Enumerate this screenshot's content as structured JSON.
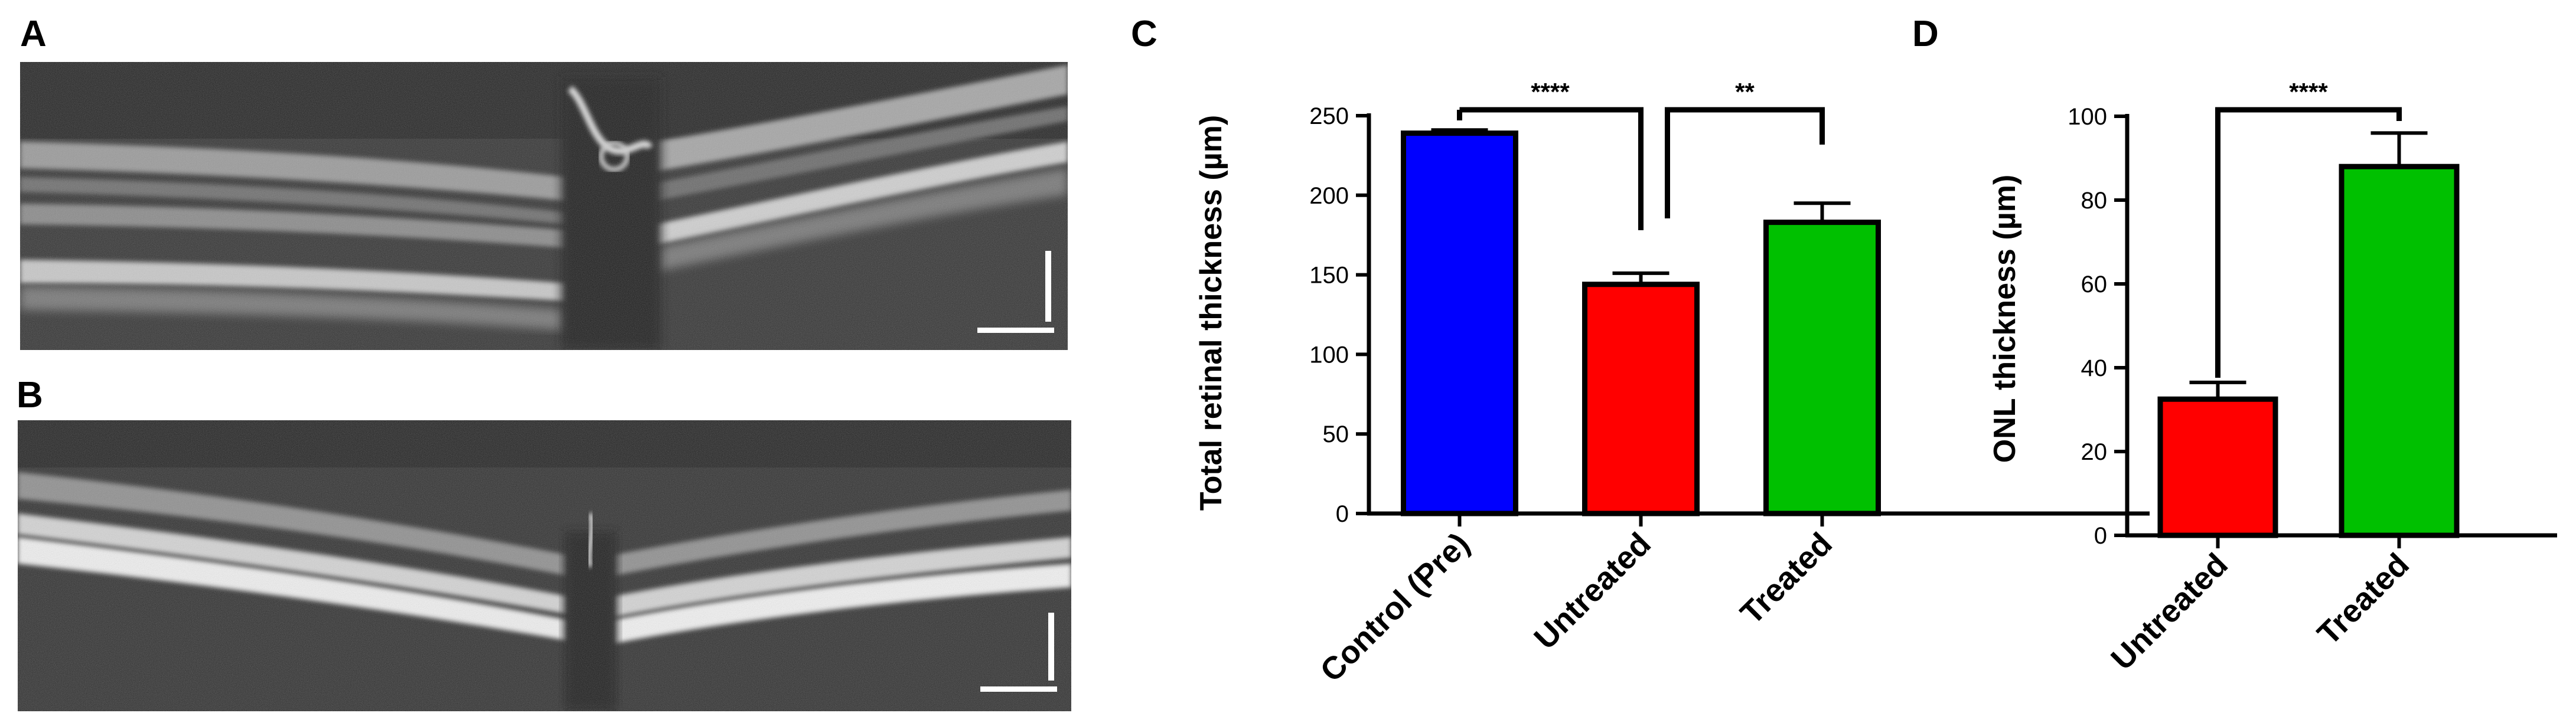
{
  "panels": {
    "a": "A",
    "b": "B",
    "c": "C",
    "d": "D"
  },
  "colors": {
    "control": "#0000ff",
    "untreated": "#ff0000",
    "treated": "#00c000",
    "oct_background": "#3a3a3a",
    "scale_bar": "#ffffff"
  },
  "chart_data": [
    {
      "type": "bar",
      "panel": "C",
      "categories": [
        "Control (Pre)",
        "Untreated",
        "Treated"
      ],
      "values": [
        239,
        144,
        183
      ],
      "errors": [
        2,
        7,
        12
      ],
      "bar_colors": [
        "#0000ff",
        "#ff0000",
        "#00c000"
      ],
      "ylabel": "Total retinal thickness (µm)",
      "xlabel": "",
      "ylim": [
        0,
        250
      ],
      "yticks": [
        "0",
        "50",
        "100",
        "150",
        "200",
        "250"
      ],
      "grid": false,
      "significance": [
        {
          "from": 0,
          "to": 1,
          "label": "****"
        },
        {
          "from": 1,
          "to": 2,
          "label": "**"
        }
      ]
    },
    {
      "type": "bar",
      "panel": "D",
      "categories": [
        "Untreated",
        "Treated"
      ],
      "values": [
        32.5,
        88
      ],
      "errors": [
        4,
        8
      ],
      "bar_colors": [
        "#ff0000",
        "#00c000"
      ],
      "ylabel": "ONL thickness (µm)",
      "xlabel": "",
      "ylim": [
        0,
        100
      ],
      "yticks": [
        "0",
        "20",
        "40",
        "60",
        "80",
        "100"
      ],
      "grid": false,
      "significance": [
        {
          "from": 0,
          "to": 1,
          "label": "****"
        }
      ]
    }
  ]
}
